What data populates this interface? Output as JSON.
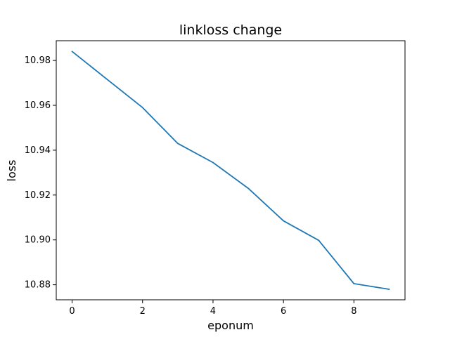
{
  "chart_data": {
    "type": "line",
    "title": "linkloss change",
    "xlabel": "eponum",
    "ylabel": "loss",
    "x": [
      0,
      1,
      2,
      3,
      4,
      5,
      6,
      7,
      8,
      9
    ],
    "series": [
      {
        "values": [
          10.984,
          10.9715,
          10.959,
          10.943,
          10.9345,
          10.923,
          10.9085,
          10.8998,
          10.8805,
          10.878
        ],
        "color": "#1f77b4"
      }
    ],
    "xlim": [
      -0.45,
      9.45
    ],
    "ylim": [
      10.8733,
      10.9888
    ],
    "xticks": [
      0,
      2,
      4,
      6,
      8
    ],
    "xtick_labels": [
      "0",
      "2",
      "4",
      "6",
      "8"
    ],
    "yticks": [
      10.88,
      10.9,
      10.92,
      10.94,
      10.96,
      10.98
    ],
    "ytick_labels": [
      "10.88",
      "10.90",
      "10.92",
      "10.94",
      "10.96",
      "10.98"
    ],
    "grid": false,
    "legend": false
  }
}
